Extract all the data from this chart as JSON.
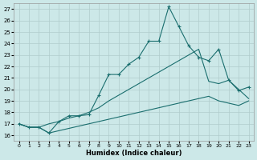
{
  "xlabel": "Humidex (Indice chaleur)",
  "bg_color": "#cce8e8",
  "grid_color": "#b0cccc",
  "line_color": "#1a6e6e",
  "xlim": [
    -0.5,
    23.5
  ],
  "ylim": [
    15.5,
    27.5
  ],
  "xticks": [
    0,
    1,
    2,
    3,
    4,
    5,
    6,
    7,
    8,
    9,
    10,
    11,
    12,
    13,
    14,
    15,
    16,
    17,
    18,
    19,
    20,
    21,
    22,
    23
  ],
  "yticks": [
    16,
    17,
    18,
    19,
    20,
    21,
    22,
    23,
    24,
    25,
    26,
    27
  ],
  "line1_x": [
    0,
    1,
    2,
    3,
    4,
    5,
    6,
    7,
    8,
    9,
    10,
    11,
    12,
    13,
    14,
    15,
    16,
    17,
    18,
    19,
    20,
    21,
    22,
    23
  ],
  "line1_y": [
    17.0,
    16.7,
    16.7,
    16.2,
    17.2,
    17.7,
    17.7,
    17.8,
    19.5,
    21.3,
    21.3,
    22.2,
    22.8,
    24.2,
    24.2,
    27.2,
    25.5,
    23.8,
    22.8,
    22.5,
    23.5,
    20.8,
    19.9,
    20.2
  ],
  "line2_x": [
    0,
    1,
    2,
    3,
    4,
    5,
    6,
    7,
    8,
    9,
    10,
    11,
    12,
    13,
    14,
    15,
    16,
    17,
    18,
    19,
    20,
    21,
    22,
    23
  ],
  "line2_y": [
    17.0,
    16.7,
    16.7,
    17.0,
    17.2,
    17.5,
    17.7,
    18.0,
    18.4,
    19.0,
    19.5,
    20.0,
    20.5,
    21.0,
    21.5,
    22.0,
    22.5,
    23.0,
    23.5,
    20.7,
    20.5,
    20.8,
    20.0,
    19.2
  ],
  "line3_x": [
    0,
    1,
    2,
    3,
    4,
    5,
    6,
    7,
    8,
    9,
    10,
    11,
    12,
    13,
    14,
    15,
    16,
    17,
    18,
    19,
    20,
    21,
    22,
    23
  ],
  "line3_y": [
    17.0,
    16.7,
    16.7,
    16.2,
    16.4,
    16.6,
    16.8,
    17.0,
    17.2,
    17.4,
    17.6,
    17.8,
    18.0,
    18.2,
    18.4,
    18.6,
    18.8,
    19.0,
    19.2,
    19.4,
    19.0,
    18.8,
    18.6,
    19.0
  ]
}
